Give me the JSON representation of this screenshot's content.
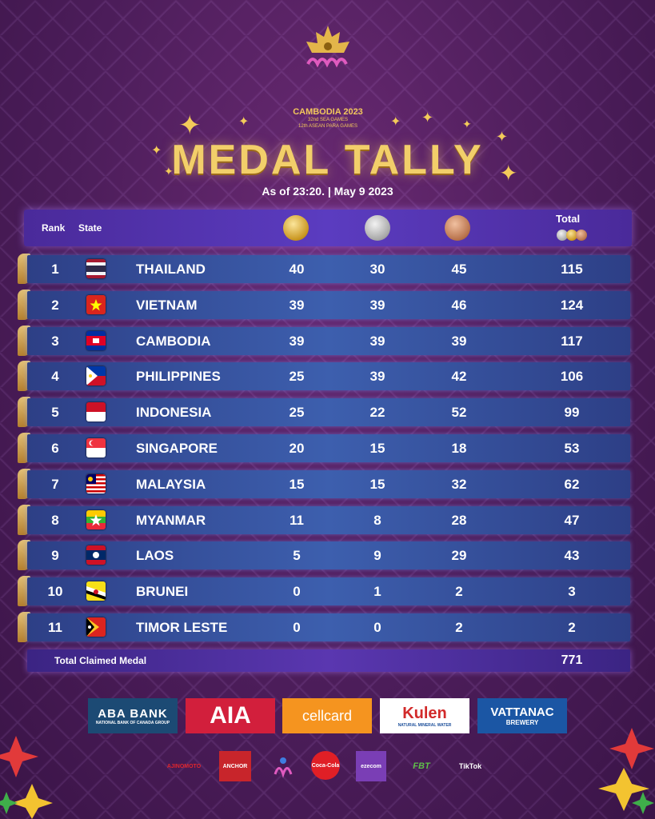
{
  "event": {
    "emblem_title": "CAMBODIA 2023",
    "emblem_line1": "32nd SEA GAMES",
    "emblem_line2": "12th ASEAN PARA GAMES"
  },
  "title": "MEDAL TALLY",
  "as_of": "As of 23:20. | May 9 2023",
  "columns": {
    "rank": "Rank",
    "state": "State",
    "total": "Total"
  },
  "rows": [
    {
      "rank": "1",
      "state": "THAILAND",
      "gold": "40",
      "silver": "30",
      "bronze": "45",
      "total": "115"
    },
    {
      "rank": "2",
      "state": "VIETNAM",
      "gold": "39",
      "silver": "39",
      "bronze": "46",
      "total": "124"
    },
    {
      "rank": "3",
      "state": "CAMBODIA",
      "gold": "39",
      "silver": "39",
      "bronze": "39",
      "total": "117"
    },
    {
      "rank": "4",
      "state": "PHILIPPINES",
      "gold": "25",
      "silver": "39",
      "bronze": "42",
      "total": "106"
    },
    {
      "rank": "5",
      "state": "INDONESIA",
      "gold": "25",
      "silver": "22",
      "bronze": "52",
      "total": "99"
    },
    {
      "rank": "6",
      "state": "SINGAPORE",
      "gold": "20",
      "silver": "15",
      "bronze": "18",
      "total": "53"
    },
    {
      "rank": "7",
      "state": "MALAYSIA",
      "gold": "15",
      "silver": "15",
      "bronze": "32",
      "total": "62"
    },
    {
      "rank": "8",
      "state": "MYANMAR",
      "gold": "11",
      "silver": "8",
      "bronze": "28",
      "total": "47"
    },
    {
      "rank": "9",
      "state": "LAOS",
      "gold": "5",
      "silver": "9",
      "bronze": "29",
      "total": "43"
    },
    {
      "rank": "10",
      "state": "BRUNEI",
      "gold": "0",
      "silver": "1",
      "bronze": "2",
      "total": "3"
    },
    {
      "rank": "11",
      "state": "TIMOR LESTE",
      "gold": "0",
      "silver": "0",
      "bronze": "2",
      "total": "2"
    }
  ],
  "total_claimed": {
    "label": "Total Claimed Medal",
    "value": "771"
  },
  "sponsors": {
    "aba_line1": "ABA BANK",
    "aba_line2": "NATIONAL BANK OF CANADA GROUP",
    "aia": "AIA",
    "cellcard": "cellcard",
    "kulen": "Kulen",
    "kulen_sub": "NATURAL MINERAL WATER",
    "vattanac_line1": "VATTANAC",
    "vattanac_line2": "BREWERY",
    "ajinomoto": "AJINOMOTO",
    "anchor": "ANCHOR",
    "cocacola": "Coca-Cola",
    "ezecom": "ezecom",
    "fbt": "FBT",
    "tiktok": "TikTok"
  },
  "colors": {
    "background": "#4c1d5a",
    "title_gold": "#f2cf6a",
    "row_blue": "#3d5fae",
    "header_purple": "#5b3cc0"
  }
}
